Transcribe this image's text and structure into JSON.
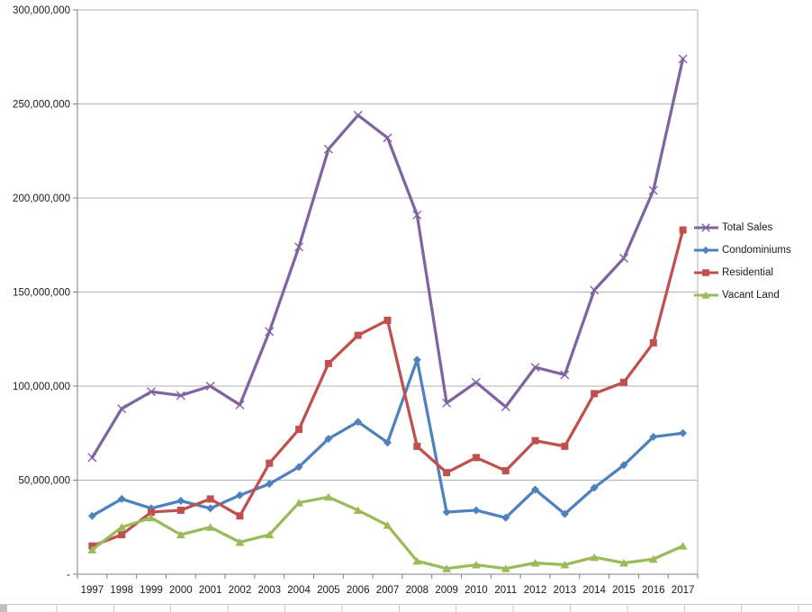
{
  "chart_data": {
    "type": "line",
    "x_categories": [
      "1997",
      "1998",
      "1999",
      "2000",
      "2001",
      "2002",
      "2003",
      "2004",
      "2005",
      "2006",
      "2007",
      "2008",
      "2009",
      "2010",
      "2011",
      "2012",
      "2013",
      "2014",
      "2015",
      "2016",
      "2017"
    ],
    "ylim": [
      0,
      300000000
    ],
    "grid": true,
    "legend_position": "right",
    "yticks": [
      {
        "value": 0,
        "label": "-"
      },
      {
        "value": 50000000,
        "label": "50,000,000"
      },
      {
        "value": 100000000,
        "label": "100,000,000"
      },
      {
        "value": 150000000,
        "label": "150,000,000"
      },
      {
        "value": 200000000,
        "label": "200,000,000"
      },
      {
        "value": 250000000,
        "label": "250,000,000"
      },
      {
        "value": 300000000,
        "label": "300,000,000"
      }
    ],
    "series": [
      {
        "name": "Total Sales",
        "color": "#8064A2",
        "marker": "x",
        "values": [
          62000000,
          88000000,
          97000000,
          95000000,
          100000000,
          90000000,
          129000000,
          174000000,
          226000000,
          244000000,
          232000000,
          191000000,
          91000000,
          102000000,
          89000000,
          110000000,
          106000000,
          151000000,
          168000000,
          204000000,
          274000000
        ]
      },
      {
        "name": "Condominiums",
        "color": "#4F81BD",
        "marker": "diamond",
        "values": [
          31000000,
          40000000,
          35000000,
          39000000,
          35000000,
          42000000,
          48000000,
          57000000,
          72000000,
          81000000,
          70000000,
          114000000,
          33000000,
          34000000,
          30000000,
          45000000,
          32000000,
          46000000,
          58000000,
          73000000,
          75000000
        ]
      },
      {
        "name": "Residential",
        "color": "#C0504D",
        "marker": "square",
        "values": [
          15000000,
          21000000,
          33000000,
          34000000,
          40000000,
          31000000,
          59000000,
          77000000,
          112000000,
          127000000,
          135000000,
          68000000,
          54000000,
          62000000,
          55000000,
          71000000,
          68000000,
          96000000,
          102000000,
          123000000,
          183000000
        ]
      },
      {
        "name": "Vacant Land",
        "color": "#9BBB59",
        "marker": "triangle",
        "values": [
          13000000,
          25000000,
          30000000,
          21000000,
          25000000,
          17000000,
          21000000,
          38000000,
          41000000,
          34000000,
          26000000,
          7000000,
          3000000,
          5000000,
          3000000,
          6000000,
          5000000,
          9000000,
          6000000,
          8000000,
          15000000
        ]
      }
    ],
    "colors": {
      "gridline": "#b0b0b0",
      "axis": "#7f7f7f",
      "label_text": "#1a1a1a"
    }
  }
}
